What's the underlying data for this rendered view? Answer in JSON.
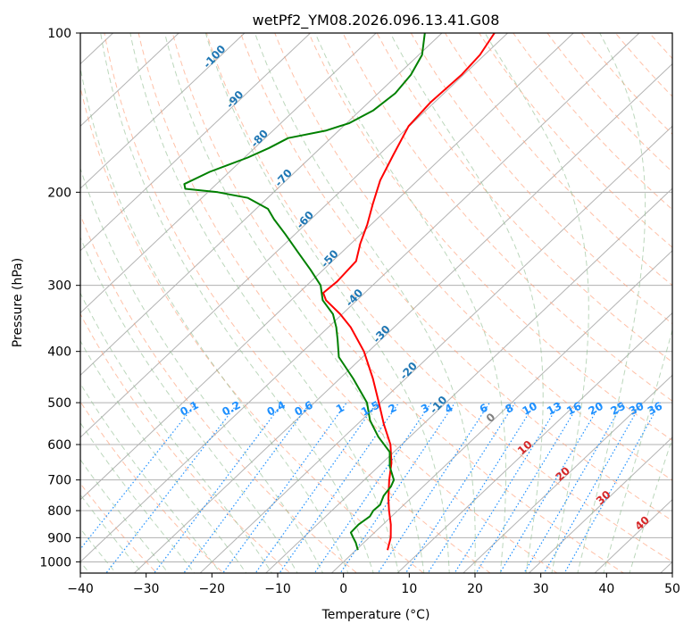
{
  "chart_data": {
    "type": "line",
    "subtype": "skew-t log-p diagram",
    "title": "wetPf2_YM08.2026.096.13.41.G08",
    "xlabel": "Temperature (°C)",
    "ylabel": "Pressure (hPa)",
    "xlim": [
      -40,
      50
    ],
    "ylim": [
      1050,
      100
    ],
    "y_scale": "log",
    "grid": true,
    "x_ticks": [
      "−40",
      "−30",
      "−20",
      "−10",
      "0",
      "10",
      "20",
      "30",
      "40",
      "50"
    ],
    "x_tick_values": [
      -40,
      -30,
      -20,
      -10,
      0,
      10,
      20,
      30,
      40,
      50
    ],
    "y_ticks": [
      "100",
      "200",
      "300",
      "400",
      "500",
      "600",
      "700",
      "800",
      "900",
      "1000"
    ],
    "y_tick_values": [
      100,
      200,
      300,
      400,
      500,
      600,
      700,
      800,
      900,
      1000
    ],
    "series": [
      {
        "color": "#ff0000",
        "points": [
          {
            "p": 950,
            "t": 4.8
          },
          {
            "p": 900,
            "t": 3.3
          },
          {
            "p": 850,
            "t": 1.2
          },
          {
            "p": 800,
            "t": -1.3
          },
          {
            "p": 760,
            "t": -3.3
          },
          {
            "p": 700,
            "t": -6.2
          },
          {
            "p": 650,
            "t": -8.6
          },
          {
            "p": 600,
            "t": -11.7
          },
          {
            "p": 550,
            "t": -15.9
          },
          {
            "p": 500,
            "t": -20.2
          },
          {
            "p": 450,
            "t": -25.0
          },
          {
            "p": 400,
            "t": -30.7
          },
          {
            "p": 360,
            "t": -36.6
          },
          {
            "p": 340,
            "t": -40.3
          },
          {
            "p": 320,
            "t": -44.7
          },
          {
            "p": 310,
            "t": -46.3
          },
          {
            "p": 295,
            "t": -46.0
          },
          {
            "p": 270,
            "t": -46.4
          },
          {
            "p": 250,
            "t": -48.6
          },
          {
            "p": 230,
            "t": -50.6
          },
          {
            "p": 210,
            "t": -53.1
          },
          {
            "p": 190,
            "t": -55.7
          },
          {
            "p": 170,
            "t": -57.8
          },
          {
            "p": 150,
            "t": -60.1
          },
          {
            "p": 135,
            "t": -60.6
          },
          {
            "p": 120,
            "t": -60.3
          },
          {
            "p": 110,
            "t": -60.7
          },
          {
            "p": 100,
            "t": -62.0
          }
        ]
      },
      {
        "color": "#008000",
        "points": [
          {
            "p": 950,
            "t": 0.3
          },
          {
            "p": 920,
            "t": -1.2
          },
          {
            "p": 900,
            "t": -2.4
          },
          {
            "p": 880,
            "t": -3.6
          },
          {
            "p": 850,
            "t": -3.7
          },
          {
            "p": 820,
            "t": -3.3
          },
          {
            "p": 800,
            "t": -3.7
          },
          {
            "p": 780,
            "t": -3.6
          },
          {
            "p": 750,
            "t": -4.5
          },
          {
            "p": 720,
            "t": -4.9
          },
          {
            "p": 700,
            "t": -5.5
          },
          {
            "p": 660,
            "t": -8.3
          },
          {
            "p": 620,
            "t": -10.6
          },
          {
            "p": 580,
            "t": -14.8
          },
          {
            "p": 540,
            "t": -18.7
          },
          {
            "p": 500,
            "t": -22.0
          },
          {
            "p": 450,
            "t": -28.0
          },
          {
            "p": 410,
            "t": -33.6
          },
          {
            "p": 380,
            "t": -36.6
          },
          {
            "p": 360,
            "t": -38.8
          },
          {
            "p": 340,
            "t": -41.4
          },
          {
            "p": 320,
            "t": -45.2
          },
          {
            "p": 300,
            "t": -47.9
          },
          {
            "p": 280,
            "t": -52.0
          },
          {
            "p": 260,
            "t": -56.6
          },
          {
            "p": 240,
            "t": -61.5
          },
          {
            "p": 225,
            "t": -65.6
          },
          {
            "p": 215,
            "t": -68.2
          },
          {
            "p": 205,
            "t": -73.0
          },
          {
            "p": 200,
            "t": -78.5
          },
          {
            "p": 197,
            "t": -84.0
          },
          {
            "p": 193,
            "t": -84.9
          },
          {
            "p": 183,
            "t": -83.0
          },
          {
            "p": 172,
            "t": -79.5
          },
          {
            "p": 165,
            "t": -77.8
          },
          {
            "p": 158,
            "t": -76.5
          },
          {
            "p": 153,
            "t": -72.0
          },
          {
            "p": 148,
            "t": -69.6
          },
          {
            "p": 140,
            "t": -68.0
          },
          {
            "p": 130,
            "t": -67.4
          },
          {
            "p": 120,
            "t": -68.0
          },
          {
            "p": 110,
            "t": -69.5
          },
          {
            "p": 100,
            "t": -72.6
          }
        ]
      }
    ],
    "mixing_ratio_labels": [
      "0.1",
      "0.2",
      "0.4",
      "0.6",
      "1",
      "1.5",
      "2",
      "3",
      "4",
      "6",
      "8",
      "10",
      "13",
      "16",
      "20",
      "25",
      "30",
      "36"
    ],
    "dry_adiabat_labels": [
      "-100",
      "-90",
      "-80",
      "-70",
      "-60",
      "-50",
      "-40",
      "-30",
      "-20",
      "-10"
    ],
    "moist_adiabat_labels": [
      "0",
      "10",
      "20",
      "30",
      "40"
    ]
  },
  "colors": {
    "temperature": "#ff0000",
    "dewpoint": "#008000",
    "dry_adiabat": "#ffa07a",
    "moist_adiabat": "#8fbc8f",
    "mixing_ratio": "#1e90ff",
    "isotherm": "#999999",
    "grid": "#b0b0b0"
  }
}
